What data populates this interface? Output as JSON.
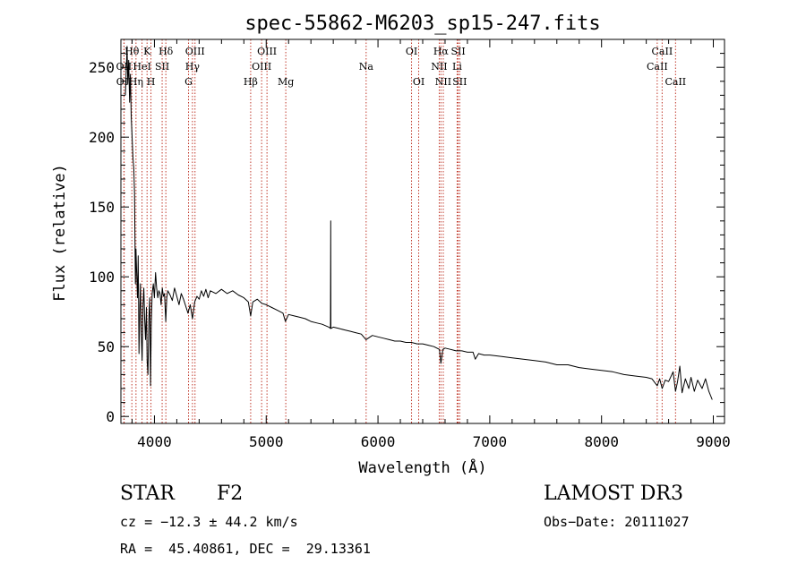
{
  "chart_data": {
    "type": "line",
    "title": "spec-55862-M6203_sp15-247.fits",
    "xlabel": "Wavelength (Å)",
    "ylabel": "Flux (relative)",
    "xlim": [
      3700,
      9100
    ],
    "ylim": [
      -5,
      270
    ],
    "xticks": [
      4000,
      5000,
      6000,
      7000,
      8000,
      9000
    ],
    "xtick_labels": [
      "4000",
      "5000",
      "6000",
      "7000",
      "8000",
      "9000"
    ],
    "yticks": [
      0,
      50,
      100,
      150,
      200,
      250
    ],
    "ytick_labels": [
      "0",
      "50",
      "100",
      "150",
      "200",
      "250"
    ],
    "series": [
      {
        "name": "flux",
        "points": [
          [
            3740,
            230
          ],
          [
            3755,
            265
          ],
          [
            3762,
            238
          ],
          [
            3770,
            255
          ],
          [
            3778,
            225
          ],
          [
            3785,
            245
          ],
          [
            3792,
            215
          ],
          [
            3800,
            200
          ],
          [
            3808,
            185
          ],
          [
            3815,
            178
          ],
          [
            3822,
            160
          ],
          [
            3830,
            95
          ],
          [
            3835,
            120
          ],
          [
            3840,
            105
          ],
          [
            3848,
            85
          ],
          [
            3855,
            115
          ],
          [
            3862,
            45
          ],
          [
            3868,
            75
          ],
          [
            3875,
            95
          ],
          [
            3882,
            60
          ],
          [
            3890,
            40
          ],
          [
            3898,
            80
          ],
          [
            3905,
            92
          ],
          [
            3912,
            70
          ],
          [
            3920,
            55
          ],
          [
            3928,
            78
          ],
          [
            3935,
            40
          ],
          [
            3942,
            30
          ],
          [
            3950,
            70
          ],
          [
            3958,
            85
          ],
          [
            3965,
            22
          ],
          [
            3972,
            65
          ],
          [
            3980,
            88
          ],
          [
            3990,
            95
          ],
          [
            4000,
            85
          ],
          [
            4010,
            103
          ],
          [
            4020,
            92
          ],
          [
            4030,
            85
          ],
          [
            4040,
            90
          ],
          [
            4050,
            88
          ],
          [
            4060,
            80
          ],
          [
            4070,
            92
          ],
          [
            4080,
            86
          ],
          [
            4090,
            88
          ],
          [
            4101,
            68
          ],
          [
            4110,
            85
          ],
          [
            4120,
            90
          ],
          [
            4140,
            87
          ],
          [
            4160,
            83
          ],
          [
            4180,
            92
          ],
          [
            4200,
            86
          ],
          [
            4220,
            80
          ],
          [
            4240,
            88
          ],
          [
            4260,
            84
          ],
          [
            4280,
            79
          ],
          [
            4300,
            74
          ],
          [
            4320,
            80
          ],
          [
            4340,
            70
          ],
          [
            4360,
            82
          ],
          [
            4380,
            86
          ],
          [
            4400,
            84
          ],
          [
            4420,
            90
          ],
          [
            4440,
            86
          ],
          [
            4460,
            91
          ],
          [
            4480,
            85
          ],
          [
            4500,
            90
          ],
          [
            4550,
            88
          ],
          [
            4600,
            91
          ],
          [
            4650,
            88
          ],
          [
            4700,
            90
          ],
          [
            4750,
            87
          ],
          [
            4800,
            85
          ],
          [
            4840,
            82
          ],
          [
            4861,
            72
          ],
          [
            4880,
            82
          ],
          [
            4920,
            84
          ],
          [
            4960,
            81
          ],
          [
            5000,
            80
          ],
          [
            5050,
            78
          ],
          [
            5100,
            76
          ],
          [
            5150,
            74
          ],
          [
            5172,
            68
          ],
          [
            5200,
            73
          ],
          [
            5250,
            72
          ],
          [
            5300,
            71
          ],
          [
            5350,
            70
          ],
          [
            5400,
            68
          ],
          [
            5450,
            67
          ],
          [
            5500,
            66
          ],
          [
            5560,
            64
          ],
          [
            5575,
            63
          ],
          [
            5577,
            140
          ],
          [
            5579,
            63
          ],
          [
            5600,
            64
          ],
          [
            5650,
            63
          ],
          [
            5700,
            62
          ],
          [
            5750,
            61
          ],
          [
            5800,
            60
          ],
          [
            5850,
            59
          ],
          [
            5893,
            55
          ],
          [
            5950,
            58
          ],
          [
            6000,
            57
          ],
          [
            6050,
            56
          ],
          [
            6100,
            55
          ],
          [
            6150,
            54
          ],
          [
            6200,
            54
          ],
          [
            6250,
            53
          ],
          [
            6300,
            53
          ],
          [
            6350,
            52
          ],
          [
            6400,
            52
          ],
          [
            6450,
            51
          ],
          [
            6500,
            50
          ],
          [
            6550,
            48
          ],
          [
            6563,
            38
          ],
          [
            6580,
            48
          ],
          [
            6600,
            49
          ],
          [
            6650,
            48
          ],
          [
            6700,
            47
          ],
          [
            6750,
            47
          ],
          [
            6800,
            46
          ],
          [
            6850,
            46
          ],
          [
            6870,
            41
          ],
          [
            6900,
            45
          ],
          [
            6950,
            44
          ],
          [
            7000,
            44
          ],
          [
            7100,
            43
          ],
          [
            7200,
            42
          ],
          [
            7300,
            41
          ],
          [
            7400,
            40
          ],
          [
            7500,
            39
          ],
          [
            7600,
            37
          ],
          [
            7700,
            37
          ],
          [
            7800,
            35
          ],
          [
            7900,
            34
          ],
          [
            8000,
            33
          ],
          [
            8100,
            32
          ],
          [
            8200,
            30
          ],
          [
            8300,
            29
          ],
          [
            8400,
            28
          ],
          [
            8450,
            27
          ],
          [
            8498,
            22
          ],
          [
            8520,
            27
          ],
          [
            8542,
            20
          ],
          [
            8570,
            26
          ],
          [
            8600,
            25
          ],
          [
            8640,
            32
          ],
          [
            8662,
            18
          ],
          [
            8680,
            25
          ],
          [
            8700,
            36
          ],
          [
            8720,
            17
          ],
          [
            8750,
            27
          ],
          [
            8780,
            20
          ],
          [
            8800,
            28
          ],
          [
            8830,
            18
          ],
          [
            8860,
            26
          ],
          [
            8900,
            20
          ],
          [
            8930,
            27
          ],
          [
            8960,
            18
          ],
          [
            8990,
            12
          ]
        ]
      }
    ],
    "spectral_lines": [
      {
        "label": "Hθ",
        "wavelength": 3798,
        "row": 0
      },
      {
        "label": "OII",
        "wavelength": 3727,
        "row": 1
      },
      {
        "label": "OII",
        "wavelength": 3729,
        "row": 2
      },
      {
        "label": "HeI",
        "wavelength": 3889,
        "row": 1
      },
      {
        "label": "Hη",
        "wavelength": 3835,
        "row": 2
      },
      {
        "label": "K",
        "wavelength": 3934,
        "row": 0
      },
      {
        "label": "H",
        "wavelength": 3969,
        "row": 2
      },
      {
        "label": "SII",
        "wavelength": 4069,
        "row": 1
      },
      {
        "label": "Hδ",
        "wavelength": 4102,
        "row": 0
      },
      {
        "label": "OIII",
        "wavelength": 4363,
        "row": 0
      },
      {
        "label": "Hγ",
        "wavelength": 4340,
        "row": 1
      },
      {
        "label": "G",
        "wavelength": 4305,
        "row": 2
      },
      {
        "label": "Hβ",
        "wavelength": 4861,
        "row": 2
      },
      {
        "label": "OIII",
        "wavelength": 5007,
        "row": 0
      },
      {
        "label": "OIII",
        "wavelength": 4959,
        "row": 1
      },
      {
        "label": "Mg",
        "wavelength": 5175,
        "row": 2
      },
      {
        "label": "Na",
        "wavelength": 5894,
        "row": 1
      },
      {
        "label": "OI",
        "wavelength": 6300,
        "row": 0
      },
      {
        "label": "OI",
        "wavelength": 6364,
        "row": 2
      },
      {
        "label": "Hα",
        "wavelength": 6563,
        "row": 0
      },
      {
        "label": "NII",
        "wavelength": 6548,
        "row": 1
      },
      {
        "label": "NII",
        "wavelength": 6584,
        "row": 2
      },
      {
        "label": "SII",
        "wavelength": 6717,
        "row": 0
      },
      {
        "label": "Li",
        "wavelength": 6708,
        "row": 1
      },
      {
        "label": "SII",
        "wavelength": 6731,
        "row": 2
      },
      {
        "label": "CaII",
        "wavelength": 8542,
        "row": 0
      },
      {
        "label": "CaII",
        "wavelength": 8498,
        "row": 1
      },
      {
        "label": "CaII",
        "wavelength": 8662,
        "row": 2
      }
    ]
  },
  "info": {
    "object_class": "STAR",
    "subclass": "F2",
    "survey": "LAMOST DR3",
    "redshift_text": "cz = −12.3 ± 44.2 km/s",
    "obs_date": "Obs−Date: 20111027",
    "coords": "RA =  45.40861, DEC =  29.13361"
  }
}
